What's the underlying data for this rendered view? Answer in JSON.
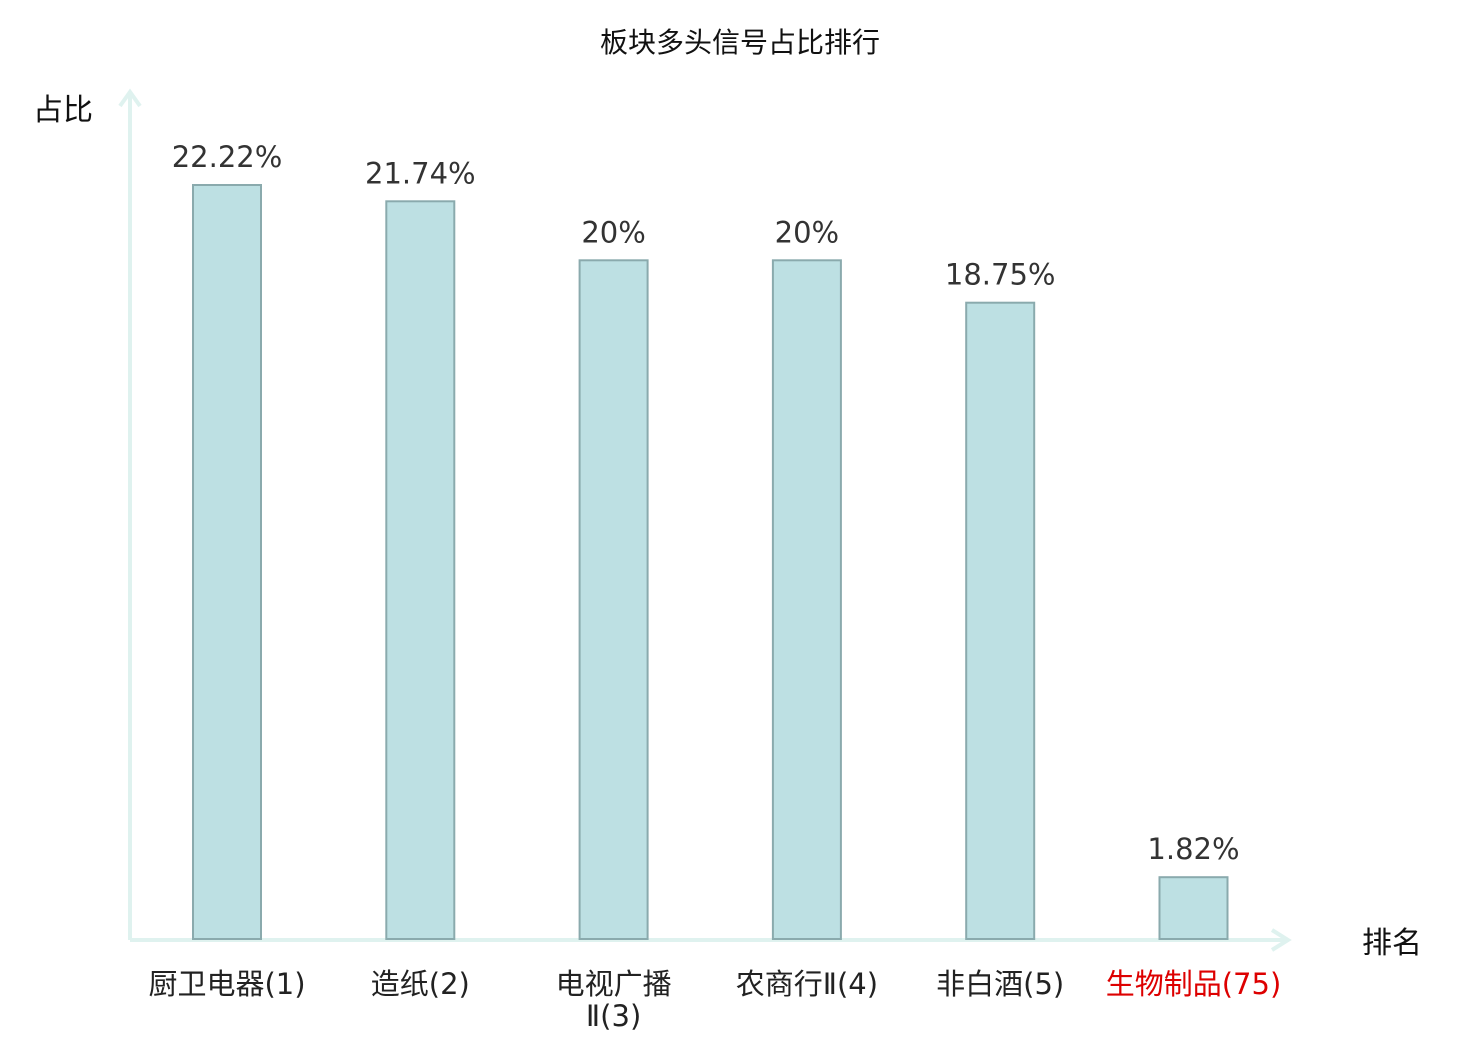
{
  "chart_data": {
    "type": "bar",
    "title": "板块多头信号占比排行",
    "xlabel": "排名",
    "ylabel": "占比",
    "categories": [
      "厨卫电器(1)",
      "造纸(2)",
      "电视广播Ⅱ(3)",
      "农商行Ⅱ(4)",
      "非白酒(5)",
      "生物制品(75)"
    ],
    "category_lines": [
      [
        "厨卫电器(1)"
      ],
      [
        "造纸(2)"
      ],
      [
        "电视广播",
        "Ⅱ(3)"
      ],
      [
        "农商行Ⅱ(4)"
      ],
      [
        "非白酒(5)"
      ],
      [
        "生物制品(75)"
      ]
    ],
    "values": [
      22.22,
      21.74,
      20,
      20,
      18.75,
      1.82
    ],
    "value_labels": [
      "22.22%",
      "21.74%",
      "20%",
      "20%",
      "18.75%",
      "1.82%"
    ],
    "highlight_index": 5,
    "ylim": [
      0,
      25
    ],
    "grid": false,
    "colors": {
      "bar_fill": "#bde0e3",
      "bar_stroke": "#8aaaad",
      "axis": "#dff2ef",
      "highlight_label": "#dd0000"
    }
  }
}
